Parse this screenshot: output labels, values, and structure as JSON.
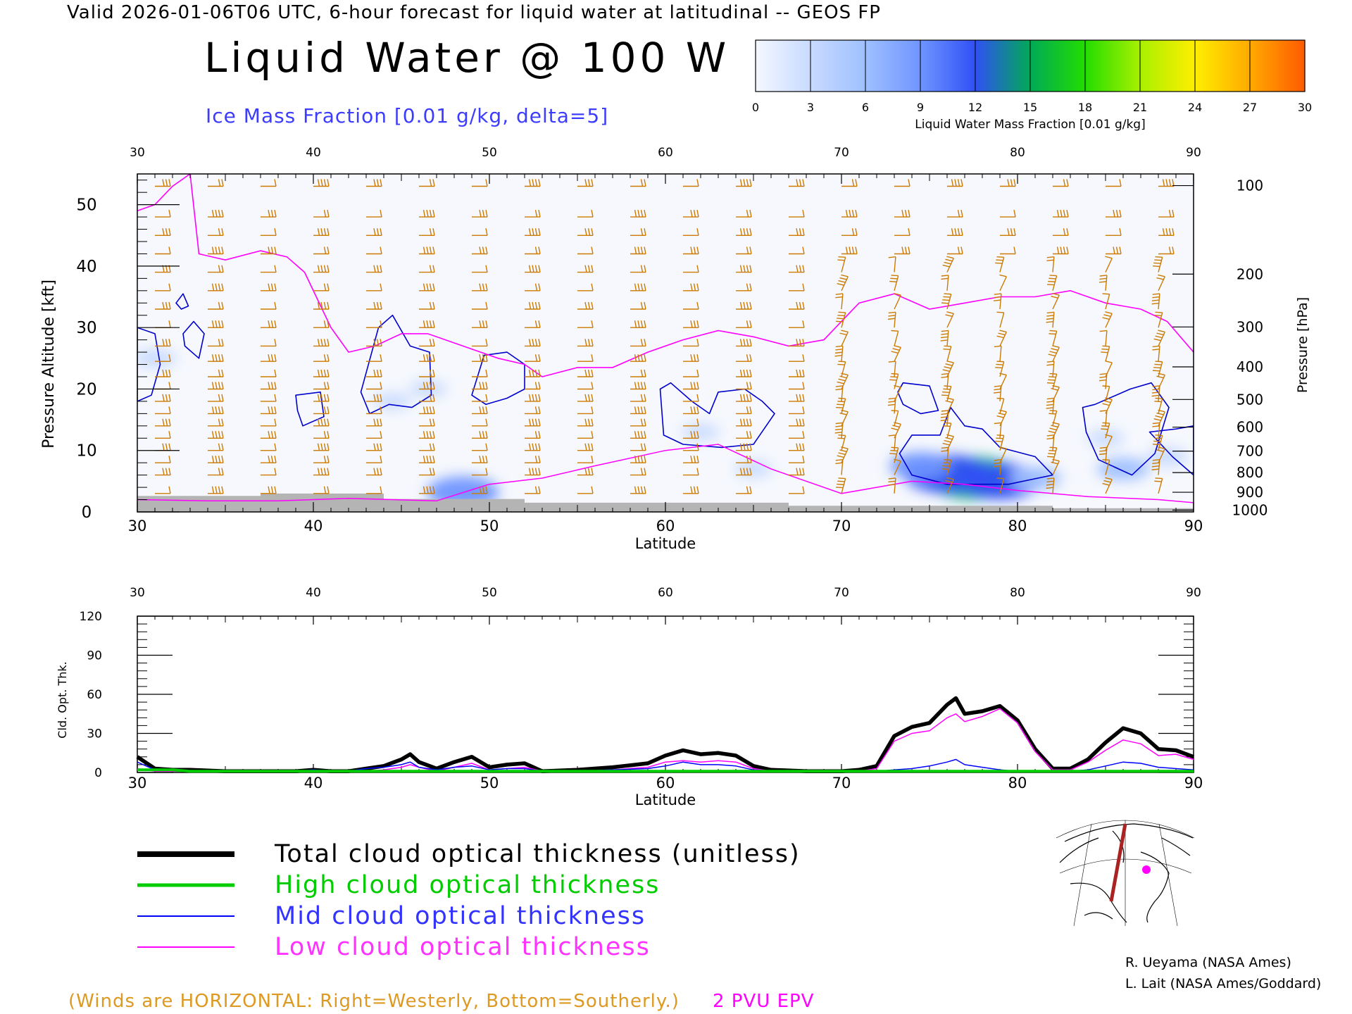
{
  "header": {
    "valid_line": "Valid 2026-01-06T06 UTC, 6-hour forecast for liquid water at latitudinal -- GEOS FP",
    "title": "Liquid Water @ 100 W",
    "subtitle": "Ice Mass Fraction [0.01 g/kg, delta=5]"
  },
  "colors": {
    "subtitle": "#3c3cff",
    "wind_barbs": "#cc7a00",
    "epv_contour": "#ff00ff",
    "ice_contour": "#0000cc",
    "terrain": "#b4b4b4",
    "total": "#000000",
    "high": "#00cc00",
    "mid": "#0000ff",
    "low": "#ff00ff"
  },
  "colorbar": {
    "label": "Liquid Water Mass Fraction [0.01 g/kg]",
    "ticks": [
      "0",
      "3",
      "6",
      "9",
      "12",
      "15",
      "18",
      "21",
      "24",
      "27",
      "30"
    ],
    "colors": [
      "#f4f8ff",
      "#c8daff",
      "#9fc0ff",
      "#6f95ff",
      "#3050f5",
      "#00aa55",
      "#22dd00",
      "#a8f000",
      "#ffee00",
      "#ffaa00",
      "#ff5a00"
    ]
  },
  "chart_data": [
    {
      "type": "heatmap",
      "title": "Liquid Water @ 100 W",
      "xlabel": "Latitude",
      "ylabel_left": "Pressure Altitude [kft]",
      "ylabel_right": "Pressure [hPa]",
      "xlim": [
        30,
        90
      ],
      "ylim": [
        0,
        55
      ],
      "x_ticks": [
        "30",
        "40",
        "50",
        "60",
        "70",
        "80",
        "90"
      ],
      "y_ticks_left": [
        "0",
        "10",
        "20",
        "30",
        "40",
        "50"
      ],
      "y_ticks_right": [
        {
          "label": "100",
          "kft": 53.1
        },
        {
          "label": "200",
          "kft": 38.7
        },
        {
          "label": "300",
          "kft": 30.1
        },
        {
          "label": "400",
          "kft": 23.6
        },
        {
          "label": "500",
          "kft": 18.3
        },
        {
          "label": "600",
          "kft": 13.8
        },
        {
          "label": "700",
          "kft": 9.9
        },
        {
          "label": "800",
          "kft": 6.4
        },
        {
          "label": "900",
          "kft": 3.2
        },
        {
          "label": "1000",
          "kft": 0.3
        }
      ],
      "liquid_water_blobs": [
        {
          "lat": 77.5,
          "kft": 5.5,
          "value": 15
        },
        {
          "lat": 76.0,
          "kft": 6.2,
          "value": 13
        },
        {
          "lat": 79.0,
          "kft": 5.0,
          "value": 12
        },
        {
          "lat": 74.5,
          "kft": 7.5,
          "value": 8
        },
        {
          "lat": 81.0,
          "kft": 5.5,
          "value": 6
        },
        {
          "lat": 48.5,
          "kft": 3.2,
          "value": 10
        },
        {
          "lat": 86.0,
          "kft": 7.0,
          "value": 6
        },
        {
          "lat": 85.0,
          "kft": 12.0,
          "value": 3
        },
        {
          "lat": 62.0,
          "kft": 13.0,
          "value": 3
        },
        {
          "lat": 65.0,
          "kft": 7.0,
          "value": 3
        },
        {
          "lat": 44.5,
          "kft": 18.0,
          "value": 3
        },
        {
          "lat": 46.5,
          "kft": 20.0,
          "value": 3
        },
        {
          "lat": 31.0,
          "kft": 25.0,
          "value": 4
        },
        {
          "lat": 88.5,
          "kft": 9.0,
          "value": 4
        }
      ],
      "epv_2pvu_kft": [
        [
          30,
          49
        ],
        [
          31,
          50
        ],
        [
          32,
          53
        ],
        [
          33,
          55
        ],
        [
          33.5,
          42
        ],
        [
          35,
          41
        ],
        [
          37,
          42.5
        ],
        [
          38.5,
          41.5
        ],
        [
          39.5,
          39
        ],
        [
          41,
          30
        ],
        [
          42,
          26
        ],
        [
          43.5,
          27
        ],
        [
          45,
          29
        ],
        [
          46.5,
          29
        ],
        [
          48.5,
          27
        ],
        [
          50.5,
          25
        ],
        [
          52,
          24
        ],
        [
          53,
          22
        ],
        [
          55,
          23.5
        ],
        [
          57,
          23.5
        ],
        [
          59,
          26
        ],
        [
          61,
          28
        ],
        [
          63,
          29.5
        ],
        [
          65,
          28.5
        ],
        [
          67,
          27
        ],
        [
          69,
          28
        ],
        [
          71,
          34
        ],
        [
          73,
          35.5
        ],
        [
          75,
          33
        ],
        [
          77,
          34
        ],
        [
          79,
          35
        ],
        [
          81,
          35
        ],
        [
          83,
          36
        ],
        [
          85,
          34
        ],
        [
          87,
          33
        ],
        [
          88.5,
          31
        ],
        [
          90,
          26
        ]
      ],
      "wind_lats": [
        31,
        34,
        37,
        40,
        43,
        46,
        49,
        52,
        55,
        58,
        61,
        64,
        67,
        70,
        73,
        76,
        79,
        82,
        85,
        88
      ],
      "wind_levels_kft": [
        3,
        6,
        8,
        10,
        12,
        14,
        16,
        18,
        20,
        22,
        24.5,
        27,
        30,
        33,
        36,
        39,
        42,
        45,
        48,
        53
      ]
    },
    {
      "type": "line",
      "xlabel": "Latitude",
      "ylabel": "Cld. Opt. Thk.",
      "xlim": [
        30,
        90
      ],
      "ylim": [
        0,
        120
      ],
      "x_ticks": [
        "30",
        "40",
        "50",
        "60",
        "70",
        "80",
        "90"
      ],
      "y_ticks": [
        "0",
        "30",
        "60",
        "90",
        "120"
      ],
      "x": [
        30,
        31,
        32,
        33,
        35,
        37,
        39,
        40,
        41,
        42,
        43,
        44,
        45,
        45.5,
        46,
        47,
        48,
        49,
        50,
        51,
        52,
        53,
        55,
        57,
        59,
        60,
        61,
        62,
        63,
        64,
        65,
        66,
        68,
        70,
        71,
        72,
        73,
        74,
        75,
        76,
        76.5,
        77,
        78,
        79,
        80,
        81,
        82,
        83,
        84,
        85,
        86,
        87,
        88,
        89,
        90
      ],
      "series": [
        {
          "name": "Total cloud optical thickness (unitless)",
          "values": [
            12,
            3,
            2,
            2,
            1,
            1,
            1,
            2,
            1,
            1,
            3,
            5,
            10,
            14,
            8,
            3,
            8,
            12,
            4,
            6,
            7,
            1,
            2,
            4,
            7,
            13,
            17,
            14,
            15,
            13,
            5,
            2,
            1,
            1,
            2,
            5,
            28,
            35,
            38,
            52,
            57,
            45,
            47,
            51,
            40,
            18,
            3,
            3,
            10,
            23,
            34,
            30,
            18,
            17,
            12
          ]
        },
        {
          "name": "High cloud optical thickness",
          "values": [
            2,
            2,
            2,
            1,
            1,
            1,
            1,
            1,
            1,
            1,
            1,
            1,
            1,
            1,
            1,
            1,
            1,
            1,
            1,
            1,
            1,
            1,
            1,
            1,
            1,
            1,
            1,
            1,
            1,
            1,
            1,
            1,
            1,
            1,
            1,
            1,
            1,
            1,
            1,
            1,
            1,
            1,
            1,
            1,
            1,
            1,
            1,
            1,
            1,
            1,
            1,
            1,
            1,
            1,
            1
          ]
        },
        {
          "name": "Mid cloud optical thickness",
          "values": [
            8,
            2,
            2,
            1,
            1,
            1,
            1,
            2,
            1,
            1,
            3,
            4,
            6,
            8,
            4,
            2,
            4,
            5,
            2,
            3,
            3,
            1,
            1,
            2,
            3,
            5,
            8,
            6,
            6,
            5,
            2,
            1,
            1,
            1,
            1,
            1,
            2,
            3,
            5,
            8,
            10,
            6,
            4,
            2,
            1,
            1,
            1,
            1,
            2,
            5,
            8,
            7,
            4,
            3,
            2
          ]
        },
        {
          "name": "Low cloud optical thickness",
          "values": [
            3,
            1,
            1,
            1,
            1,
            1,
            1,
            1,
            1,
            1,
            1,
            2,
            4,
            6,
            4,
            1,
            4,
            7,
            2,
            3,
            4,
            1,
            1,
            2,
            4,
            8,
            9,
            8,
            9,
            8,
            3,
            1,
            1,
            1,
            1,
            3,
            24,
            30,
            32,
            42,
            45,
            39,
            43,
            49,
            38,
            16,
            2,
            2,
            8,
            17,
            25,
            22,
            13,
            14,
            10
          ]
        }
      ]
    }
  ],
  "legend": [
    {
      "key": "total",
      "label": "Total cloud optical thickness (unitless)",
      "color": "#000000",
      "text_color": "#000000"
    },
    {
      "key": "high",
      "label": "High cloud optical thickness",
      "color": "#00cc00",
      "text_color": "#00cc00"
    },
    {
      "key": "mid",
      "label": "Mid cloud optical thickness",
      "color": "#0000ff",
      "text_color": "#3333ff"
    },
    {
      "key": "low",
      "label": "Low cloud optical thickness",
      "color": "#ff00ff",
      "text_color": "#ff33ff"
    }
  ],
  "credits": [
    "R. Ueyama (NASA Ames)",
    "L. Lait (NASA Ames/Goddard)"
  ],
  "footer": {
    "winds_note": "(Winds are HORIZONTAL: Right=Westerly, Bottom=Southerly.)",
    "epv_label": "2 PVU EPV"
  }
}
